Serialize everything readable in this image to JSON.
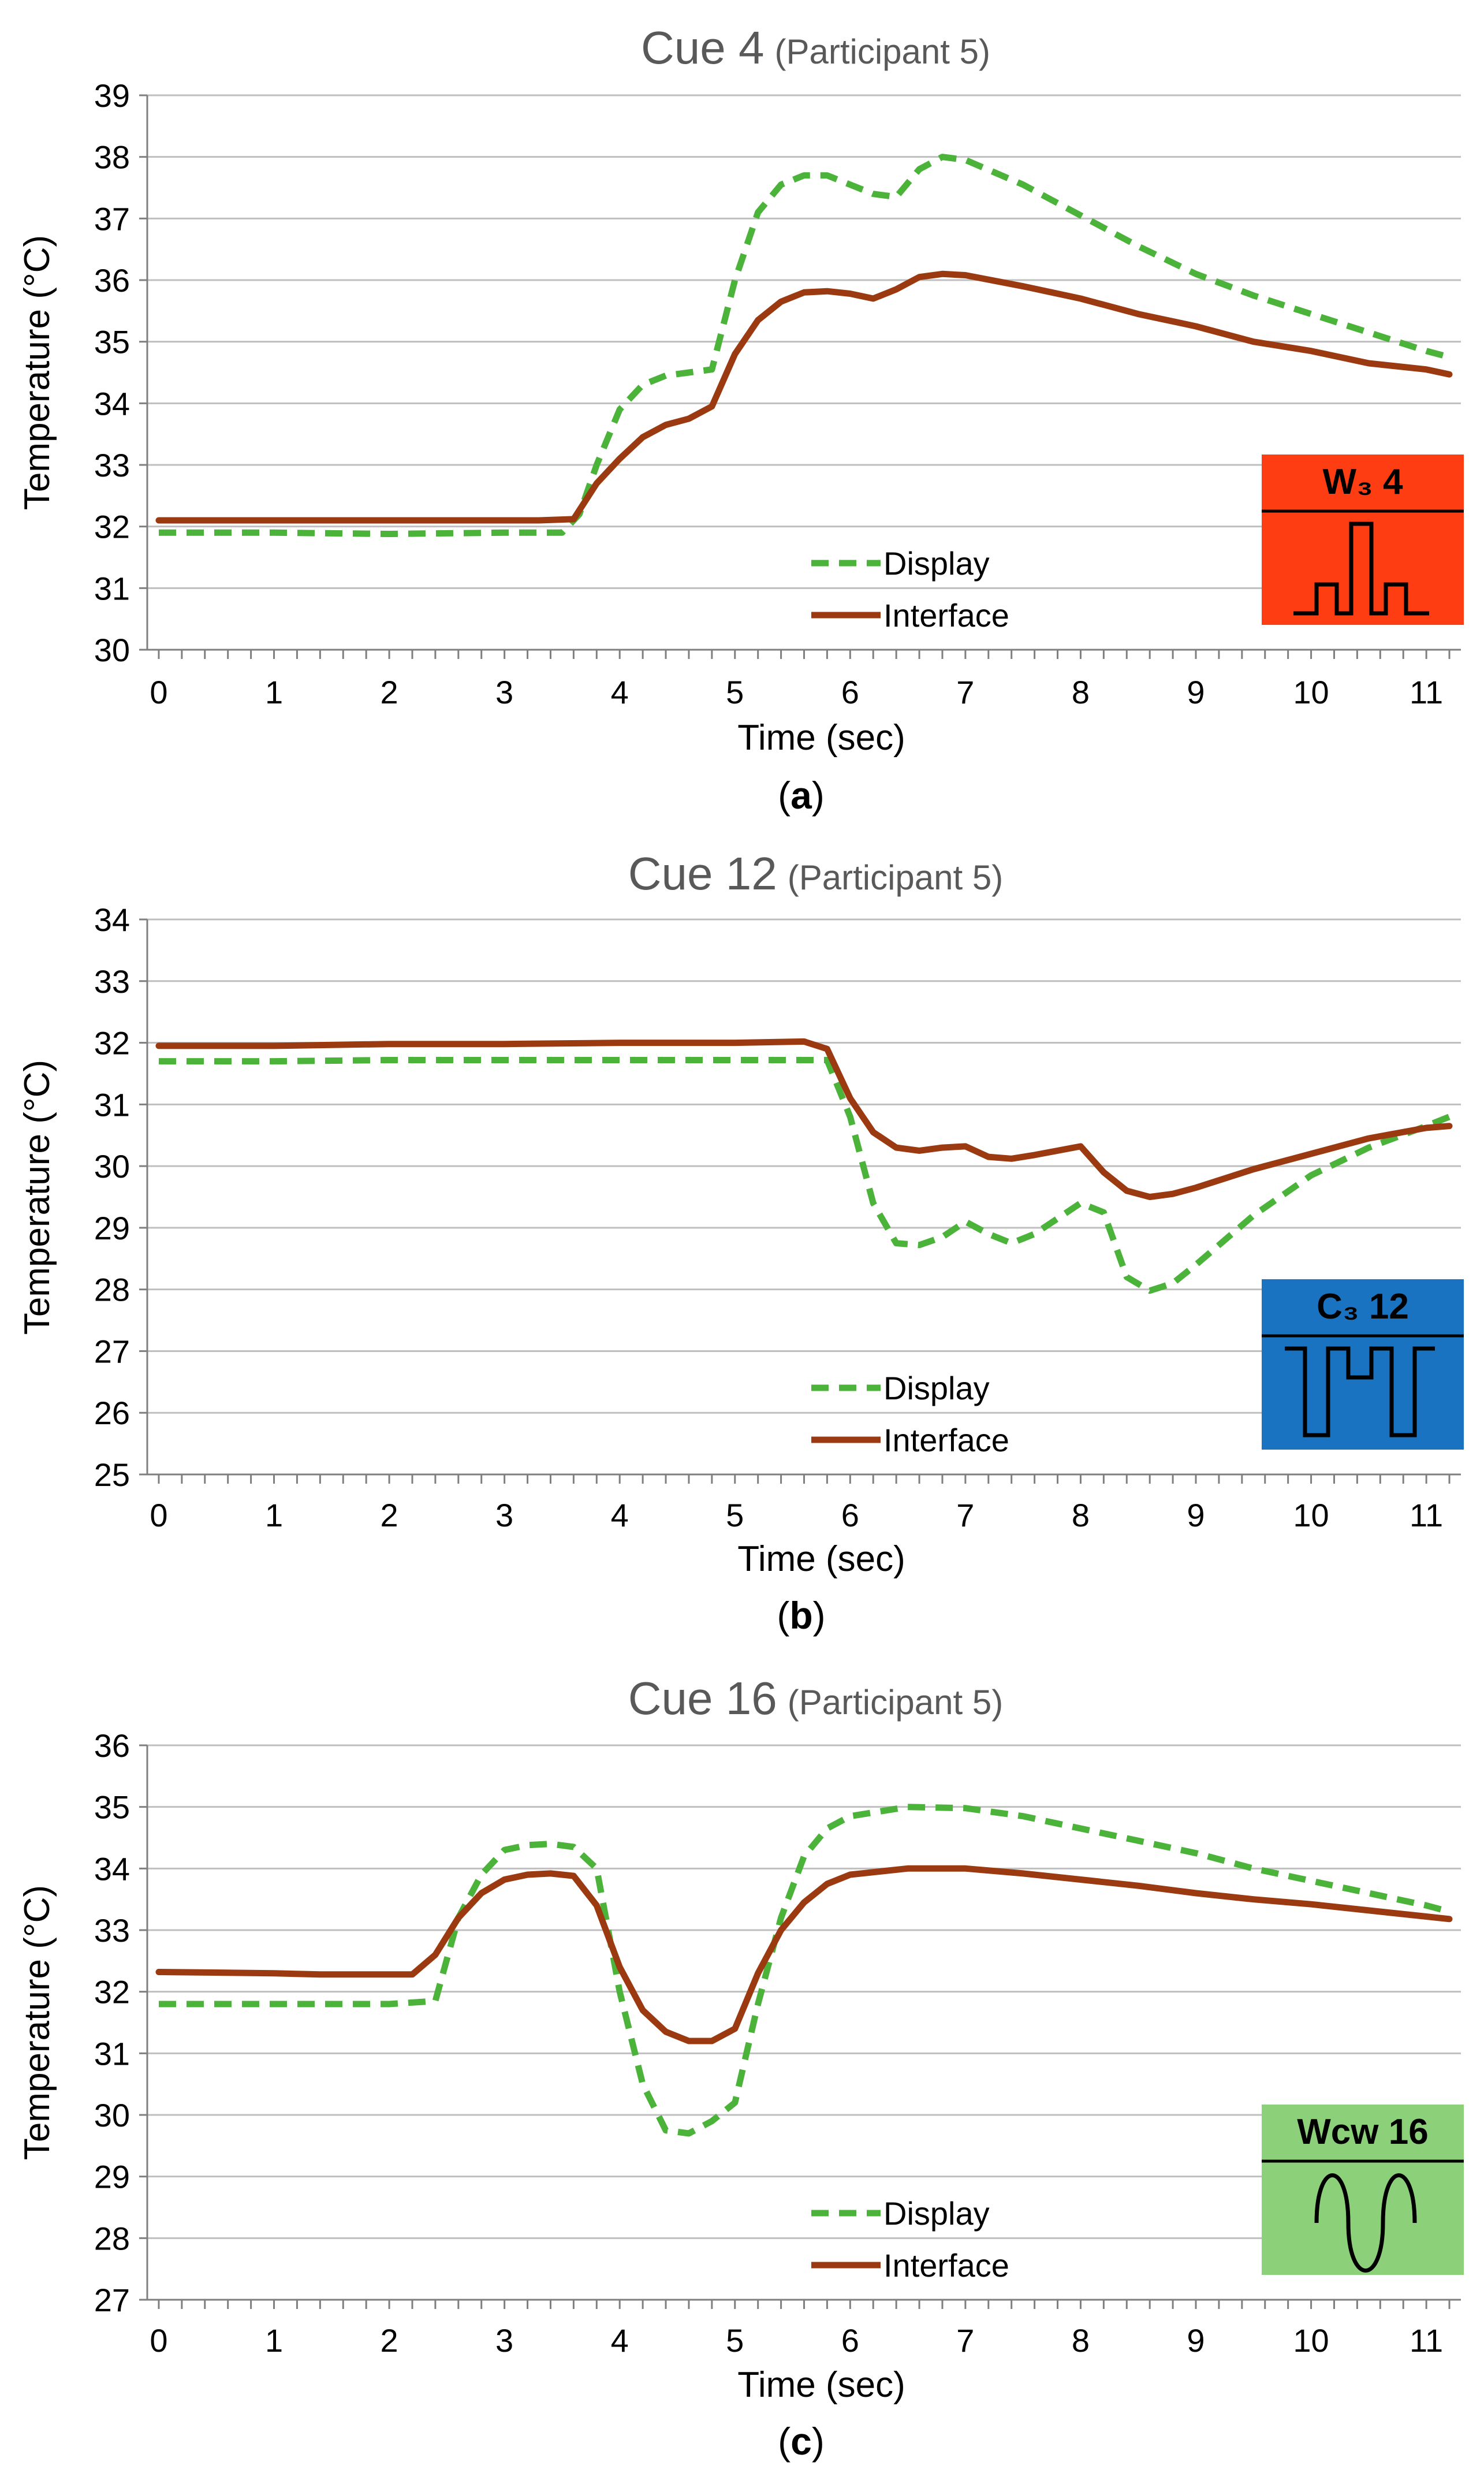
{
  "figure": {
    "panels": [
      {
        "panel_label": "a",
        "title_main": "Cue 4",
        "title_sub": "(Participant 5)",
        "legend": [
          "Display",
          "Interface"
        ],
        "cue_badge": {
          "label": "W₃ 4",
          "color": "#ff3d12",
          "waveform": "pulses"
        }
      },
      {
        "panel_label": "b",
        "title_main": "Cue 12",
        "title_sub": "(Participant 5)",
        "legend": [
          "Display",
          "Interface"
        ],
        "cue_badge": {
          "label": "C₃ 12",
          "color": "#1a73c0",
          "waveform": "dips"
        }
      },
      {
        "panel_label": "c",
        "title_main": "Cue 16",
        "title_sub": "(Participant 5)",
        "legend": [
          "Display",
          "Interface"
        ],
        "cue_badge": {
          "label": "Wcw 16",
          "color": "#8dd07a",
          "waveform": "sine"
        }
      }
    ],
    "colors": {
      "display": "#4cb33a",
      "interface": "#9b3a10",
      "grid": "#bfbfbf",
      "title": "#595959"
    }
  },
  "chart_data": [
    {
      "type": "line",
      "title": "Cue 4 (Participant 5)",
      "xlabel": "Time (sec)",
      "ylabel": "Temperature (°C)",
      "xlim": [
        -0.1,
        11.3
      ],
      "ylim": [
        30,
        39
      ],
      "x_ticks": [
        0,
        1,
        2,
        3,
        4,
        5,
        6,
        7,
        8,
        9,
        10,
        11
      ],
      "y_ticks": [
        30,
        31,
        32,
        33,
        34,
        35,
        36,
        37,
        38,
        39
      ],
      "grid": true,
      "legend_position": "bottom-right",
      "series": [
        {
          "name": "Display",
          "style": "dashed",
          "x": [
            0,
            1,
            2,
            3,
            3.5,
            3.65,
            3.8,
            4.0,
            4.2,
            4.4,
            4.6,
            4.8,
            5.0,
            5.2,
            5.4,
            5.6,
            5.8,
            6.0,
            6.2,
            6.4,
            6.6,
            6.8,
            7.0,
            7.5,
            8.0,
            8.5,
            9.0,
            9.5,
            10.0,
            10.5,
            11.0,
            11.2
          ],
          "y": [
            31.9,
            31.9,
            31.88,
            31.9,
            31.9,
            32.2,
            33.0,
            33.9,
            34.3,
            34.45,
            34.5,
            34.55,
            36.0,
            37.1,
            37.55,
            37.7,
            37.7,
            37.55,
            37.4,
            37.35,
            37.8,
            38.0,
            37.95,
            37.55,
            37.05,
            36.55,
            36.1,
            35.75,
            35.45,
            35.15,
            34.85,
            34.75
          ]
        },
        {
          "name": "Interface",
          "style": "solid",
          "x": [
            0,
            1,
            2,
            3,
            3.3,
            3.6,
            3.8,
            4.0,
            4.2,
            4.4,
            4.6,
            4.8,
            5.0,
            5.2,
            5.4,
            5.6,
            5.8,
            6.0,
            6.2,
            6.4,
            6.6,
            6.8,
            7.0,
            7.5,
            8.0,
            8.5,
            9.0,
            9.5,
            10.0,
            10.5,
            11.0,
            11.2
          ],
          "y": [
            32.1,
            32.1,
            32.1,
            32.1,
            32.1,
            32.12,
            32.7,
            33.1,
            33.45,
            33.65,
            33.75,
            33.95,
            34.8,
            35.35,
            35.65,
            35.8,
            35.82,
            35.78,
            35.7,
            35.85,
            36.05,
            36.1,
            36.08,
            35.9,
            35.7,
            35.45,
            35.25,
            35.0,
            34.85,
            34.65,
            34.55,
            34.47
          ]
        }
      ]
    },
    {
      "type": "line",
      "title": "Cue 12 (Participant 5)",
      "xlabel": "Time (sec)",
      "ylabel": "Temperature (°C)",
      "xlim": [
        -0.1,
        11.3
      ],
      "ylim": [
        25,
        34
      ],
      "x_ticks": [
        0,
        1,
        2,
        3,
        4,
        5,
        6,
        7,
        8,
        9,
        10,
        11
      ],
      "y_ticks": [
        25,
        26,
        27,
        28,
        29,
        30,
        31,
        32,
        33,
        34
      ],
      "grid": true,
      "legend_position": "bottom-right",
      "series": [
        {
          "name": "Display",
          "style": "dashed",
          "x": [
            0,
            1,
            2,
            3,
            4,
            5,
            5.6,
            5.8,
            6.0,
            6.2,
            6.4,
            6.6,
            6.8,
            7.0,
            7.2,
            7.4,
            7.6,
            7.8,
            8.0,
            8.2,
            8.4,
            8.6,
            8.8,
            9.0,
            9.5,
            10.0,
            10.5,
            11.0,
            11.2
          ],
          "y": [
            31.7,
            31.7,
            31.72,
            31.72,
            31.72,
            31.72,
            31.72,
            31.72,
            30.8,
            29.4,
            28.75,
            28.72,
            28.85,
            29.1,
            28.9,
            28.75,
            28.9,
            29.15,
            29.4,
            29.25,
            28.2,
            27.98,
            28.1,
            28.4,
            29.2,
            29.85,
            30.3,
            30.65,
            30.8
          ]
        },
        {
          "name": "Interface",
          "style": "solid",
          "x": [
            0,
            1,
            2,
            3,
            4,
            5,
            5.6,
            5.8,
            6.0,
            6.2,
            6.4,
            6.6,
            6.8,
            7.0,
            7.2,
            7.4,
            7.6,
            7.8,
            8.0,
            8.2,
            8.4,
            8.6,
            8.8,
            9.0,
            9.5,
            10.0,
            10.5,
            11.0,
            11.2
          ],
          "y": [
            31.95,
            31.95,
            31.98,
            31.98,
            32.0,
            32.0,
            32.02,
            31.9,
            31.1,
            30.55,
            30.3,
            30.25,
            30.3,
            30.32,
            30.15,
            30.12,
            30.18,
            30.25,
            30.32,
            29.9,
            29.6,
            29.5,
            29.55,
            29.65,
            29.95,
            30.2,
            30.45,
            30.62,
            30.65
          ]
        }
      ]
    },
    {
      "type": "line",
      "title": "Cue 16 (Participant 5)",
      "xlabel": "Time (sec)",
      "ylabel": "Temperature (°C)",
      "xlim": [
        -0.1,
        11.3
      ],
      "ylim": [
        27,
        36
      ],
      "x_ticks": [
        0,
        1,
        2,
        3,
        4,
        5,
        6,
        7,
        8,
        9,
        10,
        11
      ],
      "y_ticks": [
        27,
        28,
        29,
        30,
        31,
        32,
        33,
        34,
        35,
        36
      ],
      "grid": true,
      "legend_position": "bottom-right",
      "series": [
        {
          "name": "Display",
          "style": "dashed",
          "x": [
            0,
            1,
            2,
            2.4,
            2.6,
            2.8,
            3.0,
            3.2,
            3.4,
            3.6,
            3.8,
            4.0,
            4.2,
            4.4,
            4.6,
            4.8,
            5.0,
            5.2,
            5.4,
            5.6,
            5.8,
            6.0,
            6.5,
            7.0,
            7.5,
            8.0,
            8.5,
            9.0,
            9.5,
            10.0,
            10.5,
            11.0,
            11.2
          ],
          "y": [
            31.8,
            31.8,
            31.8,
            31.85,
            33.2,
            33.9,
            34.3,
            34.38,
            34.4,
            34.35,
            34.0,
            32.0,
            30.5,
            29.75,
            29.7,
            29.9,
            30.2,
            31.8,
            33.2,
            34.2,
            34.65,
            34.85,
            35.0,
            34.98,
            34.85,
            34.65,
            34.45,
            34.25,
            34.0,
            33.8,
            33.6,
            33.4,
            33.3
          ]
        },
        {
          "name": "Interface",
          "style": "solid",
          "x": [
            0,
            1,
            1.4,
            2.0,
            2.2,
            2.4,
            2.6,
            2.8,
            3.0,
            3.2,
            3.4,
            3.6,
            3.8,
            4.0,
            4.2,
            4.4,
            4.6,
            4.8,
            5.0,
            5.2,
            5.4,
            5.6,
            5.8,
            6.0,
            6.5,
            7.0,
            7.5,
            8.0,
            8.5,
            9.0,
            9.5,
            10.0,
            10.5,
            11.0,
            11.2
          ],
          "y": [
            32.32,
            32.3,
            32.28,
            32.28,
            32.28,
            32.6,
            33.2,
            33.6,
            33.82,
            33.9,
            33.92,
            33.88,
            33.4,
            32.4,
            31.7,
            31.35,
            31.2,
            31.2,
            31.4,
            32.3,
            33.0,
            33.45,
            33.75,
            33.9,
            34.0,
            34.0,
            33.92,
            33.82,
            33.72,
            33.6,
            33.5,
            33.42,
            33.32,
            33.22,
            33.18
          ]
        }
      ]
    }
  ]
}
